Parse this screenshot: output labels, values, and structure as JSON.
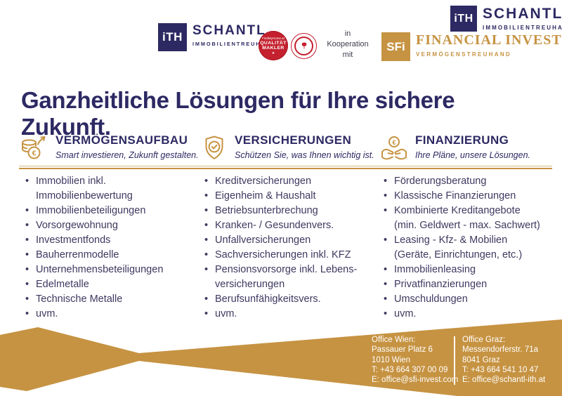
{
  "header": {
    "ith_logo": {
      "mark": "iTH",
      "name": "SCHANTL",
      "tagline": "IMMOBILIENTREUHAND"
    },
    "corner_logo": {
      "mark": "iTH",
      "name": "SCHANTL",
      "tagline": "IMMOBILIENTREUHAND"
    },
    "quality_badge": {
      "top": "FindMyHome.at",
      "line1": "QUALITÄT",
      "line2": "MAKLER",
      "star": "★"
    },
    "cooperation": {
      "line1": "in",
      "line2": "Kooperation",
      "line3": "mit"
    },
    "sfi_logo": {
      "mark": "SFi",
      "name": "FINANCIAL INVEST",
      "tagline": "VERMÖGENSTREUHAND"
    }
  },
  "title": "Ganzheitliche Lösungen für Ihre sichere Zukunft.",
  "columns": [
    {
      "icon": "coins-growth-icon",
      "heading": "VERMÖGENSAUFBAU",
      "subtitle": "Smart investieren, Zukunft gestalten.",
      "items": [
        "Immobilien inkl.\nImmobilienbewertung",
        "Immobilienbeteiligungen",
        "Vorsorgewohnung",
        "Investmentfonds",
        "Bauherrenmodelle",
        "Unternehmensbeteiligungen",
        "Edelmetalle",
        "Technische Metalle",
        "uvm."
      ]
    },
    {
      "icon": "shield-check-icon",
      "heading": "VERSICHERUNGEN",
      "subtitle": "Schützen Sie, was Ihnen wichtig ist.",
      "items": [
        "Kreditversicherungen",
        "Eigenheim & Haushalt",
        "Betriebsunterbrechung",
        "Kranken- / Gesundenvers.",
        "Unfallversicherungen",
        "Sachversicherungen inkl. KFZ",
        "Pensionsvorsorge inkl. Lebens-\nversicherungen",
        "Berufsunfähigkeitsvers.",
        "uvm."
      ]
    },
    {
      "icon": "hands-euro-icon",
      "heading": "FINANZIERUNG",
      "subtitle": "Ihre Pläne, unsere Lösungen.",
      "items": [
        "Förderungsberatung",
        "Klassische Finanzierungen",
        "Kombinierte Kreditangebote\n(min. Geldwert - max. Sachwert)",
        "Leasing - Kfz- & Mobilien\n(Geräte, Einrichtungen, etc.)",
        "Immobilienleasing",
        "Privatfinanzierungen",
        "Umschuldungen",
        "uvm."
      ]
    }
  ],
  "footer": {
    "offices": [
      {
        "label": "Office Wien:",
        "street": "Passauer Platz 6",
        "city": "1010 Wien",
        "phone": "T: +43 664 307 00 09",
        "email": "E: office@sfi-invest.com"
      },
      {
        "label": "Office Graz:",
        "street": "Messendorferstr. 71a",
        "city": "8041 Graz",
        "phone": "T: +43 664 541 10 47",
        "email": "E: office@schantl-ith.at"
      }
    ]
  },
  "colors": {
    "gold": "#C69342",
    "navy": "#2D2963",
    "list_text": "#3D3960",
    "badge_red": "#C4202D"
  }
}
